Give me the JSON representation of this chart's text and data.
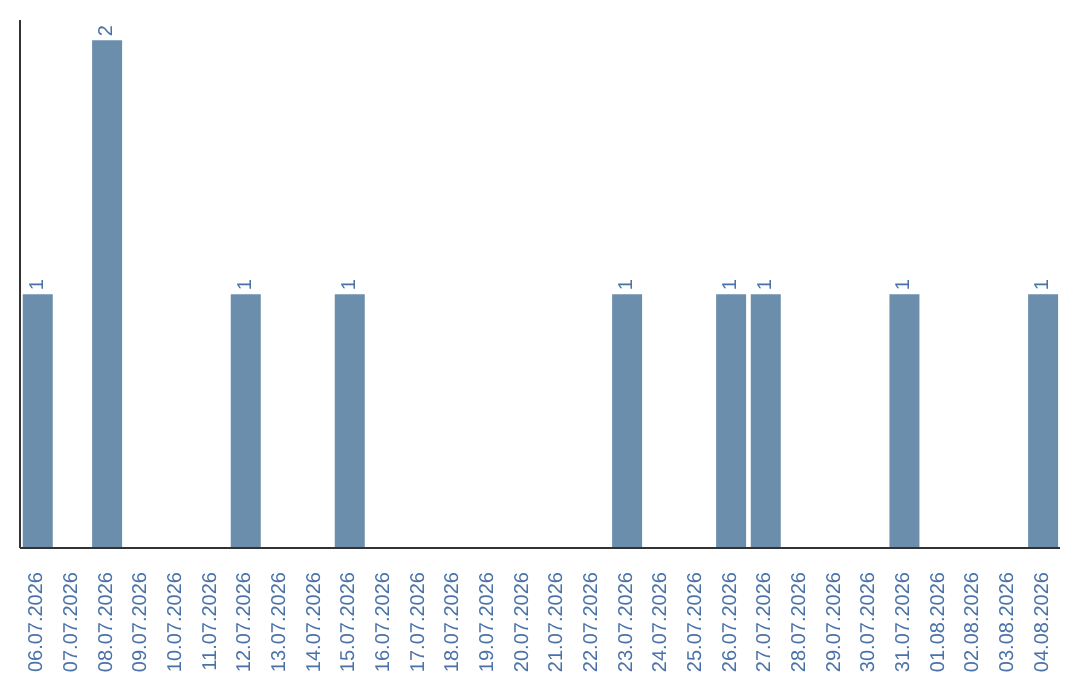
{
  "chart_data": {
    "type": "bar",
    "categories": [
      "06.07.2026",
      "07.07.2026",
      "08.07.2026",
      "09.07.2026",
      "10.07.2026",
      "11.07.2026",
      "12.07.2026",
      "13.07.2026",
      "14.07.2026",
      "15.07.2026",
      "16.07.2026",
      "17.07.2026",
      "18.07.2026",
      "19.07.2026",
      "20.07.2026",
      "21.07.2026",
      "22.07.2026",
      "23.07.2026",
      "24.07.2026",
      "25.07.2026",
      "26.07.2026",
      "27.07.2026",
      "28.07.2026",
      "29.07.2026",
      "30.07.2026",
      "31.07.2026",
      "01.08.2026",
      "02.08.2026",
      "03.08.2026",
      "04.08.2026"
    ],
    "values": [
      1,
      0,
      2,
      0,
      0,
      0,
      1,
      0,
      0,
      1,
      0,
      0,
      0,
      0,
      0,
      0,
      0,
      1,
      0,
      0,
      1,
      1,
      0,
      0,
      0,
      1,
      0,
      0,
      0,
      1
    ],
    "value_labels": [
      "1",
      null,
      "2",
      null,
      null,
      null,
      "1",
      null,
      null,
      "1",
      null,
      null,
      null,
      null,
      null,
      null,
      null,
      "1",
      null,
      null,
      "1",
      "1",
      null,
      null,
      null,
      "1",
      null,
      null,
      null,
      "1"
    ],
    "color": "#6b8ead",
    "ylim": [
      0,
      2.08
    ],
    "tick_labels": "x",
    "grid": false,
    "legend": false
  }
}
